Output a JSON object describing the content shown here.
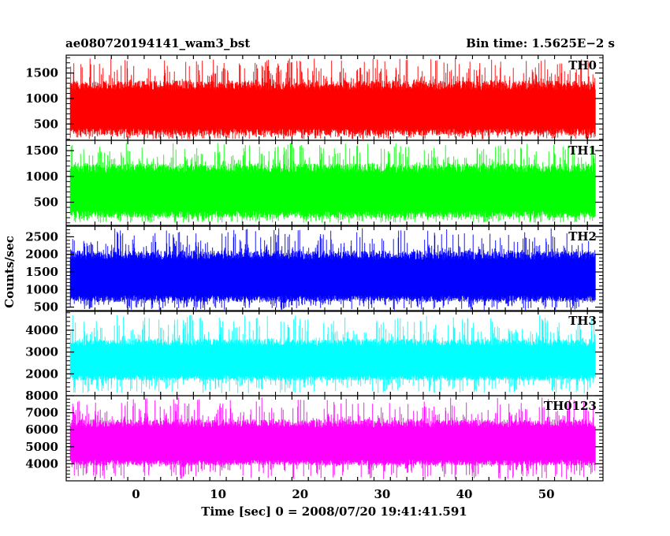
{
  "header": {
    "title": "ae080720194141_wam3_bst",
    "bin_time": "Bin time: 1.5625E−2 s"
  },
  "chart_data": {
    "type": "line",
    "title": "ae080720194141_wam3_bst",
    "ylabel": "Counts/sec",
    "xlabel": "Time [sec] 0 = 2008/07/20 19:41:41.591",
    "xlim": [
      -8.5,
      56.9
    ],
    "data_x_range": [
      -8,
      56
    ],
    "x_ticks": [
      "0",
      "10",
      "20",
      "30",
      "40",
      "50"
    ],
    "grid": false,
    "panels": [
      {
        "name": "TH0",
        "color": "#ff0000",
        "ylim": [
          180,
          1850
        ],
        "y_ticks": [
          "500",
          "1000",
          "1500"
        ],
        "typical_band": [
          280,
          1350
        ],
        "spikes_max": 1800,
        "dips_min": 200
      },
      {
        "name": "TH1",
        "color": "#00ff00",
        "ylim": [
          50,
          1700
        ],
        "y_ticks": [
          "500",
          "1000",
          "1500"
        ],
        "typical_band": [
          200,
          1250
        ],
        "spikes_max": 1650,
        "dips_min": 100
      },
      {
        "name": "TH2",
        "color": "#0000ff",
        "ylim": [
          380,
          2800
        ],
        "y_ticks": [
          "500",
          "1000",
          "1500",
          "2000",
          "2500"
        ],
        "typical_band": [
          650,
          2100
        ],
        "spikes_max": 2750,
        "dips_min": 420
      },
      {
        "name": "TH3",
        "color": "#00ffff",
        "ylim": [
          1000,
          4900
        ],
        "y_ticks": [
          "2000",
          "3000",
          "4000"
        ],
        "typical_band": [
          1700,
          3600
        ],
        "spikes_max": 4700,
        "dips_min": 1100
      },
      {
        "name": "TH0123",
        "color": "#ff00ff",
        "ylim": [
          3000,
          8000
        ],
        "y_ticks": [
          "4000",
          "5000",
          "6000",
          "7000",
          "8000"
        ],
        "typical_band": [
          3900,
          6600
        ],
        "spikes_max": 7900,
        "dips_min": 3100
      }
    ]
  }
}
